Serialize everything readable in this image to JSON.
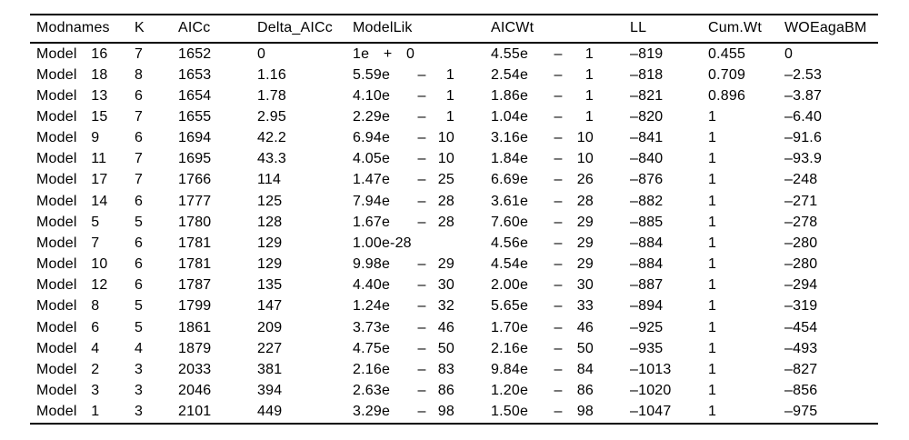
{
  "table": {
    "columns": [
      {
        "key": "modnames",
        "label": "Modnames"
      },
      {
        "key": "k",
        "label": "K"
      },
      {
        "key": "aicc",
        "label": "AICc"
      },
      {
        "key": "delta_aicc",
        "label": "Delta_AICc"
      },
      {
        "key": "modellik",
        "label": "ModelLik"
      },
      {
        "key": "aicwt",
        "label": "AICWt"
      },
      {
        "key": "ll",
        "label": "LL"
      },
      {
        "key": "cumwt",
        "label": "Cum.Wt"
      },
      {
        "key": "woeagabm",
        "label": "WOEagaBM"
      }
    ],
    "rows": [
      [
        "Model 16",
        "7",
        "1652",
        "0",
        "1e + 0",
        {
          "m": "4.55e",
          "s": "–",
          "e": "1"
        },
        "–819",
        "0.455",
        "0"
      ],
      [
        "Model 18",
        "8",
        "1653",
        "1.16",
        {
          "m": "5.59e",
          "s": "–",
          "e": "1"
        },
        {
          "m": "2.54e",
          "s": "–",
          "e": "1"
        },
        "–818",
        "0.709",
        "–2.53"
      ],
      [
        "Model 13",
        "6",
        "1654",
        "1.78",
        {
          "m": "4.10e",
          "s": "–",
          "e": "1"
        },
        {
          "m": "1.86e",
          "s": "–",
          "e": "1"
        },
        "–821",
        "0.896",
        "–3.87"
      ],
      [
        "Model 15",
        "7",
        "1655",
        "2.95",
        {
          "m": "2.29e",
          "s": "–",
          "e": "1"
        },
        {
          "m": "1.04e",
          "s": "–",
          "e": "1"
        },
        "–820",
        "1",
        "–6.40"
      ],
      [
        "Model 9",
        "6",
        "1694",
        "42.2",
        {
          "m": "6.94e",
          "s": "–",
          "e": "10"
        },
        {
          "m": "3.16e",
          "s": "–",
          "e": "10"
        },
        "–841",
        "1",
        "–91.6"
      ],
      [
        "Model 11",
        "7",
        "1695",
        "43.3",
        {
          "m": "4.05e",
          "s": "–",
          "e": "10"
        },
        {
          "m": "1.84e",
          "s": "–",
          "e": "10"
        },
        "–840",
        "1",
        "–93.9"
      ],
      [
        "Model 17",
        "7",
        "1766",
        "114",
        {
          "m": "1.47e",
          "s": "–",
          "e": "25"
        },
        {
          "m": "6.69e",
          "s": "–",
          "e": "26"
        },
        "–876",
        "1",
        "–248"
      ],
      [
        "Model 14",
        "6",
        "1777",
        "125",
        {
          "m": "7.94e",
          "s": "–",
          "e": "28"
        },
        {
          "m": "3.61e",
          "s": "–",
          "e": "28"
        },
        "–882",
        "1",
        "–271"
      ],
      [
        "Model 5",
        "5",
        "1780",
        "128",
        {
          "m": "1.67e",
          "s": "–",
          "e": "28"
        },
        {
          "m": "7.60e",
          "s": "–",
          "e": "29"
        },
        "–885",
        "1",
        "–278"
      ],
      [
        "Model 7",
        "6",
        "1781",
        "129",
        "1.00e-28",
        {
          "m": "4.56e",
          "s": "–",
          "e": "29"
        },
        "–884",
        "1",
        "–280"
      ],
      [
        "Model 10",
        "6",
        "1781",
        "129",
        {
          "m": "9.98e",
          "s": "–",
          "e": "29"
        },
        {
          "m": "4.54e",
          "s": "–",
          "e": "29"
        },
        "–884",
        "1",
        "–280"
      ],
      [
        "Model 12",
        "6",
        "1787",
        "135",
        {
          "m": "4.40e",
          "s": "–",
          "e": "30"
        },
        {
          "m": "2.00e",
          "s": "–",
          "e": "30"
        },
        "–887",
        "1",
        "–294"
      ],
      [
        "Model 8",
        "5",
        "1799",
        "147",
        {
          "m": "1.24e",
          "s": "–",
          "e": "32"
        },
        {
          "m": "5.65e",
          "s": "–",
          "e": "33"
        },
        "–894",
        "1",
        "–319"
      ],
      [
        "Model 6",
        "5",
        "1861",
        "209",
        {
          "m": "3.73e",
          "s": "–",
          "e": "46"
        },
        {
          "m": "1.70e",
          "s": "–",
          "e": "46"
        },
        "–925",
        "1",
        "–454"
      ],
      [
        "Model 4",
        "4",
        "1879",
        "227",
        {
          "m": "4.75e",
          "s": "–",
          "e": "50"
        },
        {
          "m": "2.16e",
          "s": "–",
          "e": "50"
        },
        "–935",
        "1",
        "–493"
      ],
      [
        "Model 2",
        "3",
        "2033",
        "381",
        {
          "m": "2.16e",
          "s": "–",
          "e": "83"
        },
        {
          "m": "9.84e",
          "s": "–",
          "e": "84"
        },
        "–1013",
        "1",
        "–827"
      ],
      [
        "Model 3",
        "3",
        "2046",
        "394",
        {
          "m": "2.63e",
          "s": "–",
          "e": "86"
        },
        {
          "m": "1.20e",
          "s": "–",
          "e": "86"
        },
        "–1020",
        "1",
        "–856"
      ],
      [
        "Model 1",
        "3",
        "2101",
        "449",
        {
          "m": "3.29e",
          "s": "–",
          "e": "98"
        },
        {
          "m": "1.50e",
          "s": "–",
          "e": "98"
        },
        "–1047",
        "1",
        "–975"
      ]
    ],
    "colors": {
      "text": "#000000",
      "background": "#ffffff",
      "rule": "#000000"
    }
  }
}
